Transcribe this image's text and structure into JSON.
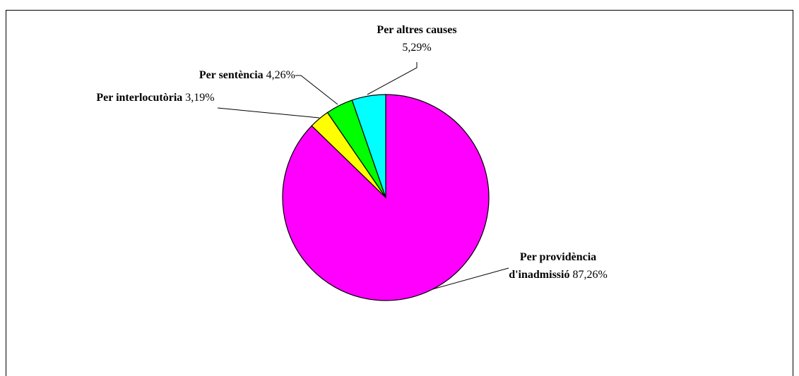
{
  "chart_data": {
    "type": "pie",
    "categories": [
      "Per providència d'inadmissió",
      "Per interlocutòria",
      "Per sentència",
      "Per altres causes"
    ],
    "values": [
      87.26,
      3.19,
      4.26,
      5.29
    ],
    "value_labels": [
      "87,26%",
      "3,19%",
      "4,26%",
      "5,29%"
    ],
    "colors": [
      "#ff00ff",
      "#ffff00",
      "#00ff00",
      "#00ffff"
    ]
  }
}
